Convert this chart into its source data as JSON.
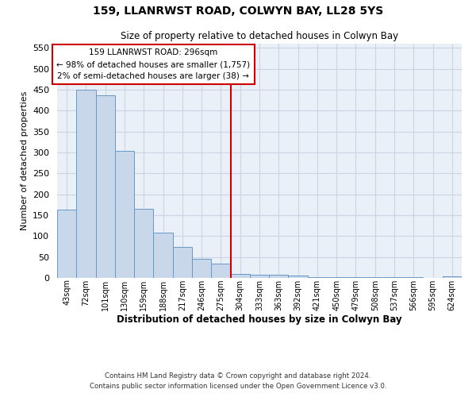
{
  "title": "159, LLANRWST ROAD, COLWYN BAY, LL28 5YS",
  "subtitle": "Size of property relative to detached houses in Colwyn Bay",
  "xlabel": "Distribution of detached houses by size in Colwyn Bay",
  "ylabel": "Number of detached properties",
  "footer1": "Contains HM Land Registry data © Crown copyright and database right 2024.",
  "footer2": "Contains public sector information licensed under the Open Government Licence v3.0.",
  "bar_color": "#c8d8ea",
  "bar_edge_color": "#6898c8",
  "annotation_line_color": "#cc0000",
  "annotation_box_edge_color": "#cc0000",
  "annotation_line1": "159 LLANRWST ROAD: 296sqm",
  "annotation_line2": "← 98% of detached houses are smaller (1,757)",
  "annotation_line3": "2% of semi-detached houses are larger (38) →",
  "categories": [
    "43sqm",
    "72sqm",
    "101sqm",
    "130sqm",
    "159sqm",
    "188sqm",
    "217sqm",
    "246sqm",
    "275sqm",
    "304sqm",
    "333sqm",
    "363sqm",
    "392sqm",
    "421sqm",
    "450sqm",
    "479sqm",
    "508sqm",
    "537sqm",
    "566sqm",
    "595sqm",
    "624sqm"
  ],
  "values": [
    163,
    450,
    436,
    304,
    165,
    108,
    74,
    45,
    35,
    10,
    7,
    7,
    5,
    2,
    1,
    1,
    1,
    1,
    1,
    0,
    4
  ],
  "ylim": [
    0,
    560
  ],
  "yticks": [
    0,
    50,
    100,
    150,
    200,
    250,
    300,
    350,
    400,
    450,
    500,
    550
  ],
  "vline_position": 8.5,
  "grid_color": "#ccd4e4",
  "plot_bg_color": "#eaf0f8"
}
